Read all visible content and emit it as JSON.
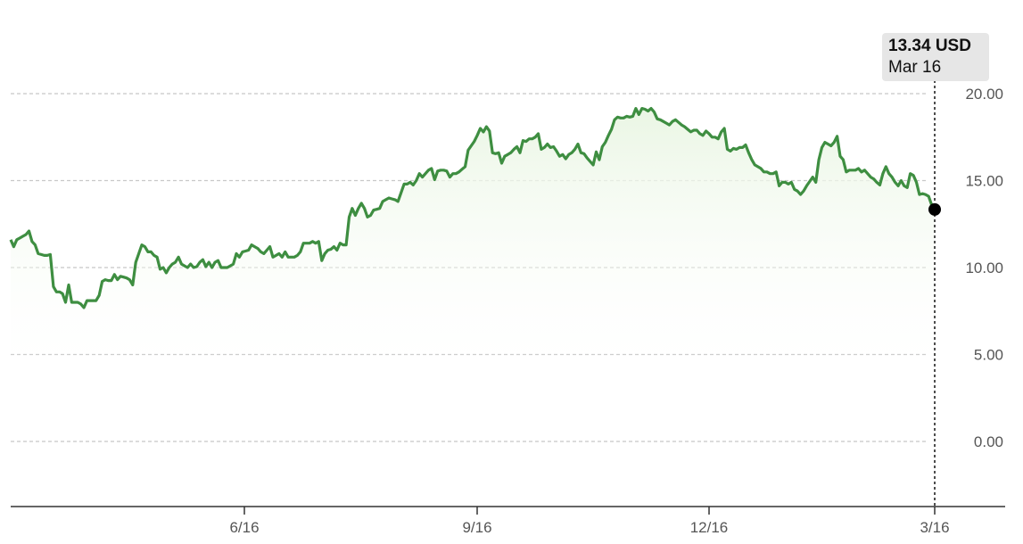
{
  "tooltip": {
    "price": "13.34 USD",
    "date": "Mar 16"
  },
  "colors": {
    "line": "#3e8e41",
    "fill": "#eef8ea",
    "grid": "#c8c8c8",
    "marker": "#000000"
  },
  "chart_data": {
    "type": "line",
    "y_ticks": [
      "20.00",
      "15.00",
      "10.00",
      "5.00",
      "0.00"
    ],
    "y_tick_values": [
      20,
      15,
      10,
      5,
      0
    ],
    "x_ticks": [
      "6/16",
      "9/16",
      "12/16",
      "3/16"
    ],
    "ylim": [
      -3.5,
      21.5
    ],
    "grid": "horizontal dashed",
    "series": [
      {
        "values": [
          11.6,
          11.2,
          11.6,
          11.7,
          11.8,
          11.9,
          12.1,
          11.5,
          11.3,
          10.8,
          10.75,
          10.7,
          10.7,
          10.75,
          8.9,
          8.6,
          8.6,
          8.5,
          8.0,
          9.0,
          8.0,
          8.0,
          8.0,
          7.9,
          7.7,
          8.1,
          8.1,
          8.1,
          8.1,
          8.4,
          9.2,
          9.3,
          9.25,
          9.25,
          9.6,
          9.3,
          9.5,
          9.45,
          9.4,
          9.3,
          9.0,
          10.3,
          10.8,
          11.3,
          11.2,
          10.9,
          10.9,
          10.7,
          10.6,
          9.9,
          10.0,
          9.7,
          10.0,
          10.2,
          10.3,
          10.6,
          10.2,
          10.1,
          10.0,
          10.2,
          10.0,
          10.05,
          10.3,
          10.45,
          10.05,
          10.3,
          10.0,
          10.3,
          10.4,
          10.0,
          10.0,
          10.0,
          10.1,
          10.2,
          10.8,
          10.6,
          10.9,
          10.95,
          11.0,
          11.3,
          11.2,
          11.1,
          10.9,
          10.8,
          11.0,
          11.2,
          10.6,
          10.7,
          10.8,
          10.6,
          10.9,
          10.6,
          10.6,
          10.6,
          10.7,
          10.9,
          11.4,
          11.4,
          11.4,
          11.5,
          11.4,
          11.5,
          10.4,
          10.8,
          11.0,
          11.05,
          11.2,
          11.0,
          11.4,
          11.3,
          11.3,
          12.9,
          13.4,
          13.0,
          13.4,
          13.7,
          13.4,
          12.9,
          13.0,
          13.3,
          13.35,
          13.4,
          13.8,
          13.9,
          14.0,
          13.95,
          13.9,
          13.8,
          14.3,
          14.8,
          14.8,
          14.9,
          14.75,
          15.0,
          15.4,
          15.2,
          15.4,
          15.6,
          15.7,
          15.05,
          15.55,
          15.6,
          15.6,
          15.55,
          15.2,
          15.4,
          15.4,
          15.5,
          15.65,
          15.8,
          16.75,
          17.0,
          17.25,
          17.6,
          18.0,
          17.8,
          18.1,
          17.85,
          16.6,
          16.55,
          16.6,
          16.0,
          16.4,
          16.5,
          16.6,
          16.8,
          16.95,
          16.6,
          17.3,
          17.25,
          17.4,
          17.4,
          17.5,
          17.7,
          16.8,
          16.9,
          17.1,
          16.9,
          16.95,
          16.7,
          16.4,
          16.5,
          16.25,
          16.5,
          16.6,
          16.8,
          17.1,
          16.6,
          16.55,
          16.3,
          16.1,
          15.9,
          16.65,
          16.2,
          16.95,
          17.2,
          17.6,
          17.95,
          18.5,
          18.65,
          18.6,
          18.6,
          18.7,
          18.65,
          18.7,
          19.15,
          18.8,
          19.15,
          19.1,
          19.0,
          19.15,
          18.95,
          18.55,
          18.5,
          18.4,
          18.3,
          18.2,
          18.4,
          18.5,
          18.35,
          18.2,
          18.1,
          17.95,
          17.8,
          17.9,
          17.9,
          17.7,
          17.6,
          17.85,
          17.7,
          17.5,
          17.5,
          17.4,
          17.8,
          18.0,
          16.8,
          16.7,
          16.85,
          16.8,
          16.9,
          16.9,
          17.05,
          16.6,
          16.2,
          15.9,
          15.8,
          15.7,
          15.5,
          15.5,
          15.4,
          15.4,
          15.5,
          14.7,
          14.9,
          14.9,
          14.8,
          14.9,
          14.5,
          14.4,
          14.2,
          14.4,
          14.7,
          14.95,
          15.2,
          14.9,
          16.2,
          16.9,
          17.2,
          17.1,
          17.0,
          17.2,
          17.55,
          16.4,
          16.2,
          15.5,
          15.6,
          15.6,
          15.6,
          15.7,
          15.5,
          15.6,
          15.4,
          15.2,
          15.1,
          14.9,
          14.75,
          15.4,
          15.8,
          15.4,
          15.2,
          14.9,
          14.7,
          15.0,
          14.7,
          14.6,
          15.4,
          15.3,
          14.9,
          14.2,
          14.25,
          14.2,
          14.1,
          13.6,
          13.34
        ]
      }
    ]
  }
}
